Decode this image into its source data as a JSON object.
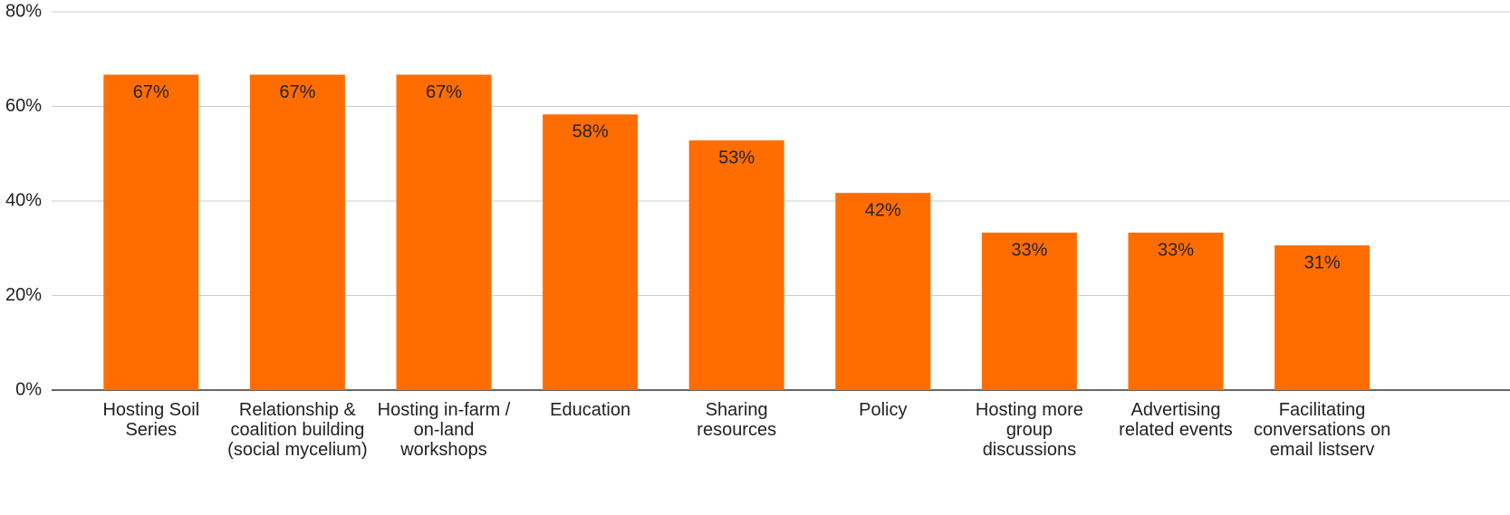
{
  "chart_data": {
    "type": "bar",
    "categories": [
      "Hosting Soil Series",
      "Relationship & coalition building (social mycelium)",
      "Hosting in-farm / on-land workshops",
      "Education",
      "Sharing resources",
      "Policy",
      "Hosting more group discussions",
      "Advertising related events",
      "Facilitating conversations on email listserv"
    ],
    "values": [
      66.7,
      66.7,
      66.7,
      58.3,
      52.8,
      41.7,
      33.3,
      33.3,
      30.6
    ],
    "value_labels": [
      "67%",
      "67%",
      "67%",
      "58%",
      "53%",
      "42%",
      "33%",
      "33%",
      "31%"
    ],
    "color": "#ff6d01",
    "ylim": [
      0,
      80
    ],
    "yticks": [
      {
        "value": 0,
        "label": "0%"
      },
      {
        "value": 20,
        "label": "20%"
      },
      {
        "value": 40,
        "label": "40%"
      },
      {
        "value": 60,
        "label": "60%"
      },
      {
        "value": 80,
        "label": "80%"
      }
    ],
    "grid": true
  }
}
